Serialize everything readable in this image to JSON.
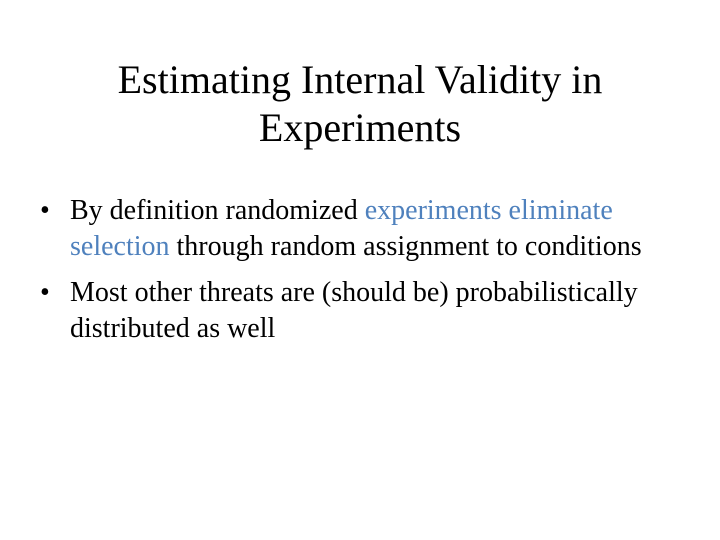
{
  "slide": {
    "title_line1": "Estimating Internal Validity in",
    "title_line2": "Experiments",
    "bullet_symbol": "•",
    "bullets": [
      {
        "text_before": "By definition randomized ",
        "highlight": "experiments eliminate selection",
        "text_after": " through random assignment to conditions"
      },
      {
        "text_before": "Most other threats are (should be) probabilistically distributed as well",
        "highlight": "",
        "text_after": ""
      }
    ]
  },
  "colors": {
    "highlight": "#4f81bd",
    "text": "#000000",
    "background": "#ffffff"
  }
}
